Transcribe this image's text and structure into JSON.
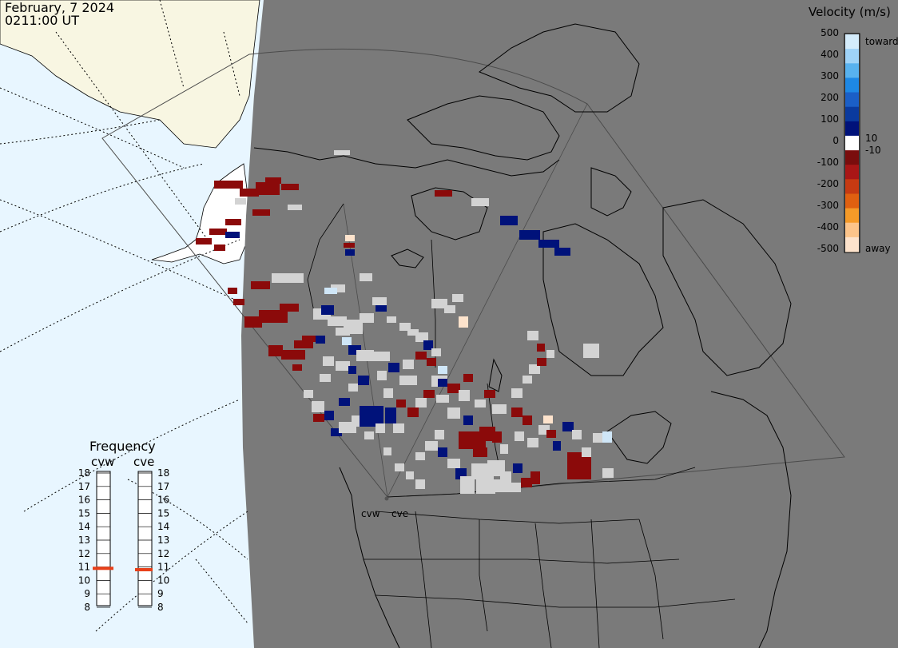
{
  "header": {
    "date": "February, 7 2024",
    "time": "0211:00 UT"
  },
  "legend": {
    "title": "Velocity (m/s)",
    "ticks": [
      "500",
      "400",
      "300",
      "200",
      "100",
      "0",
      "-100",
      "-200",
      "-300",
      "-400",
      "-500"
    ],
    "toward": "toward",
    "away": "away",
    "ten_pos": "10",
    "ten_neg": "-10",
    "colors": [
      "#d4ecfb",
      "#9fd3f8",
      "#58b2ef",
      "#1e88e5",
      "#1b5fc7",
      "#0a3a9e",
      "#00127a",
      "#ffffff",
      "#7a0d0d",
      "#a91616",
      "#c63a12",
      "#e06010",
      "#f59a28",
      "#fcc48a",
      "#fde3cc"
    ]
  },
  "frequency": {
    "title": "Frequency",
    "radars": [
      "cvw",
      "cve"
    ],
    "ticks": [
      "18",
      "17",
      "16",
      "15",
      "14",
      "13",
      "12",
      "11",
      "10",
      "9",
      "8"
    ],
    "cvw_mhz": 10.9,
    "cve_mhz": 10.8,
    "marker_color": "#e8401a"
  },
  "radar_sites": {
    "cvw": "cvw",
    "cve": "cve"
  }
}
